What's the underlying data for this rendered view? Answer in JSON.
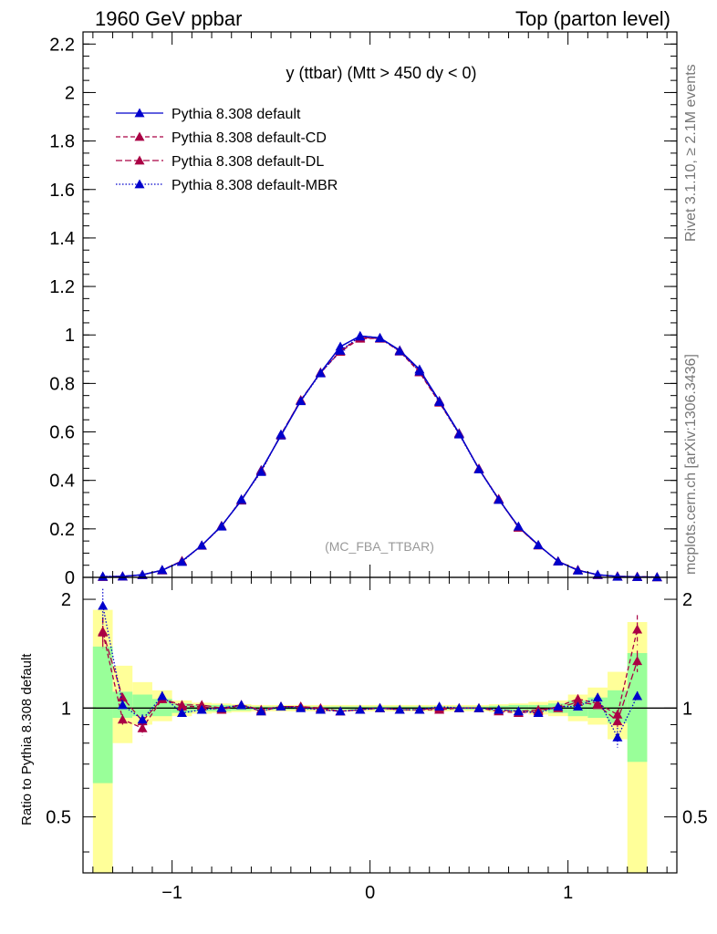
{
  "header": {
    "left": "1960 GeV ppbar",
    "right": "Top (parton level)"
  },
  "side_text": {
    "rivet": "Rivet 3.1.10, ≥ 2.1M events",
    "mcplots": "mcplots.cern.ch [arXiv:1306.3436]"
  },
  "chart_data": [
    {
      "type": "line",
      "panel": "main",
      "title": "y (ttbar) (Mtt > 450 dy < 0)",
      "watermark": "(MC_FBA_TTBAR)",
      "xlim": [
        -1.45,
        1.55
      ],
      "ylim": [
        0,
        2.25
      ],
      "yticks": [
        "0",
        "0.2",
        "0.4",
        "0.6",
        "0.8",
        "1",
        "1.2",
        "1.4",
        "1.6",
        "1.8",
        "2",
        "2.2"
      ],
      "legend_position": "top-left",
      "x": [
        -1.35,
        -1.25,
        -1.15,
        -1.05,
        -0.95,
        -0.85,
        -0.75,
        -0.65,
        -0.55,
        -0.45,
        -0.35,
        -0.25,
        -0.15,
        -0.05,
        0.05,
        0.15,
        0.25,
        0.35,
        0.45,
        0.55,
        0.65,
        0.75,
        0.85,
        0.95,
        1.05,
        1.15,
        1.25,
        1.35,
        1.45
      ],
      "series": [
        {
          "name": "Pythia 8.308 default",
          "color": "#0000cc",
          "dash": "",
          "values": [
            0.002,
            0.004,
            0.011,
            0.029,
            0.067,
            0.132,
            0.213,
            0.317,
            0.443,
            0.585,
            0.728,
            0.845,
            0.952,
            0.996,
            0.988,
            0.937,
            0.858,
            0.728,
            0.595,
            0.447,
            0.322,
            0.209,
            0.134,
            0.066,
            0.029,
            0.011,
            0.004,
            0.002,
            0.001
          ]
        },
        {
          "name": "Pythia 8.308 default-CD",
          "color": "#aa0044",
          "dash": "5,3",
          "values": [
            0.003,
            0.004,
            0.01,
            0.03,
            0.068,
            0.131,
            0.211,
            0.321,
            0.438,
            0.589,
            0.73,
            0.845,
            0.931,
            0.985,
            0.986,
            0.932,
            0.846,
            0.721,
            0.592,
            0.448,
            0.324,
            0.205,
            0.132,
            0.067,
            0.031,
            0.01,
            0.004,
            0.003,
            0.001
          ]
        },
        {
          "name": "Pythia 8.308 default-DL",
          "color": "#aa0044",
          "dash": "7,3",
          "values": [
            0.003,
            0.004,
            0.01,
            0.03,
            0.067,
            0.132,
            0.212,
            0.319,
            0.44,
            0.588,
            0.732,
            0.843,
            0.935,
            0.989,
            0.985,
            0.935,
            0.85,
            0.726,
            0.593,
            0.449,
            0.321,
            0.206,
            0.133,
            0.066,
            0.03,
            0.01,
            0.004,
            0.003,
            0.001
          ]
        },
        {
          "name": "Pythia 8.308 default-MBR",
          "color": "#0000cc",
          "dash": "1.5,2",
          "values": [
            0.004,
            0.004,
            0.01,
            0.031,
            0.064,
            0.132,
            0.21,
            0.322,
            0.435,
            0.59,
            0.727,
            0.842,
            0.935,
            0.994,
            0.987,
            0.933,
            0.85,
            0.724,
            0.59,
            0.446,
            0.32,
            0.21,
            0.133,
            0.066,
            0.029,
            0.011,
            0.003,
            0.002,
            0.001
          ]
        }
      ]
    },
    {
      "type": "line",
      "panel": "ratio",
      "ylabel": "Ratio to Pythia 8.308 default",
      "xlim": [
        -1.45,
        1.55
      ],
      "ylim": [
        0.35,
        2.3
      ],
      "yticks": [
        "0.5",
        "1",
        "2"
      ],
      "xticks": [
        "−1",
        "0",
        "1"
      ],
      "x": [
        -1.35,
        -1.25,
        -1.15,
        -1.05,
        -0.95,
        -0.85,
        -0.75,
        -0.65,
        -0.55,
        -0.45,
        -0.35,
        -0.25,
        -0.15,
        -0.05,
        0.05,
        0.15,
        0.25,
        0.35,
        0.45,
        0.55,
        0.65,
        0.75,
        0.85,
        0.95,
        1.05,
        1.15,
        1.25,
        1.35
      ],
      "bands": {
        "green_low": [
          0.62,
          0.94,
          0.95,
          0.95,
          0.97,
          0.98,
          0.98,
          0.985,
          0.99,
          0.99,
          0.99,
          0.99,
          0.99,
          0.99,
          0.99,
          0.99,
          0.99,
          0.99,
          0.99,
          0.99,
          0.985,
          0.98,
          0.98,
          0.97,
          0.95,
          0.94,
          0.91,
          0.71
        ],
        "green_high": [
          1.48,
          1.11,
          1.09,
          1.06,
          1.03,
          1.02,
          1.02,
          1.015,
          1.01,
          1.01,
          1.01,
          1.01,
          1.01,
          1.01,
          1.01,
          1.01,
          1.01,
          1.01,
          1.01,
          1.01,
          1.015,
          1.02,
          1.02,
          1.03,
          1.05,
          1.07,
          1.12,
          1.42
        ],
        "yellow_low": [
          0.3,
          0.8,
          0.9,
          0.92,
          0.95,
          0.965,
          0.97,
          0.975,
          0.98,
          0.98,
          0.98,
          0.98,
          0.98,
          0.98,
          0.98,
          0.98,
          0.98,
          0.98,
          0.98,
          0.98,
          0.975,
          0.97,
          0.96,
          0.95,
          0.92,
          0.9,
          0.82,
          0.3
        ],
        "yellow_high": [
          1.87,
          1.31,
          1.18,
          1.12,
          1.05,
          1.035,
          1.03,
          1.025,
          1.02,
          1.02,
          1.02,
          1.02,
          1.02,
          1.02,
          1.02,
          1.02,
          1.02,
          1.02,
          1.02,
          1.02,
          1.025,
          1.03,
          1.04,
          1.05,
          1.09,
          1.14,
          1.26,
          1.73
        ]
      },
      "series": [
        {
          "name": "Pythia 8.308 default-CD",
          "color": "#aa0044",
          "dash": "5,3",
          "values": [
            1.62,
            0.93,
            0.88,
            1.06,
            1.01,
            1.01,
            0.99,
            1.02,
            0.98,
            1.01,
            1.01,
            0.99,
            0.98,
            0.99,
            1.0,
            0.99,
            0.99,
            0.99,
            1.0,
            1.0,
            0.98,
            0.97,
            0.98,
            1.01,
            1.06,
            1.03,
            0.96,
            1.65
          ]
        },
        {
          "name": "Pythia 8.308 default-DL",
          "color": "#aa0044",
          "dash": "7,3",
          "values": [
            1.63,
            1.07,
            0.92,
            1.06,
            1.02,
            1.02,
            1.0,
            1.02,
            0.99,
            1.01,
            1.01,
            1.0,
            0.98,
            0.99,
            1.0,
            0.99,
            0.99,
            1.0,
            1.0,
            1.0,
            0.99,
            0.98,
            0.99,
            1.0,
            1.04,
            1.02,
            0.92,
            1.35
          ]
        },
        {
          "name": "Pythia 8.308 default-MBR",
          "color": "#0000cc",
          "dash": "1.5,2",
          "values": [
            1.92,
            1.02,
            0.93,
            1.08,
            0.97,
            0.99,
            1.0,
            1.02,
            0.98,
            1.01,
            1.0,
            0.99,
            0.98,
            0.99,
            1.0,
            0.99,
            0.99,
            1.01,
            1.0,
            1.0,
            0.99,
            0.98,
            0.97,
            1.01,
            1.01,
            1.07,
            0.83,
            1.08
          ]
        }
      ]
    }
  ]
}
